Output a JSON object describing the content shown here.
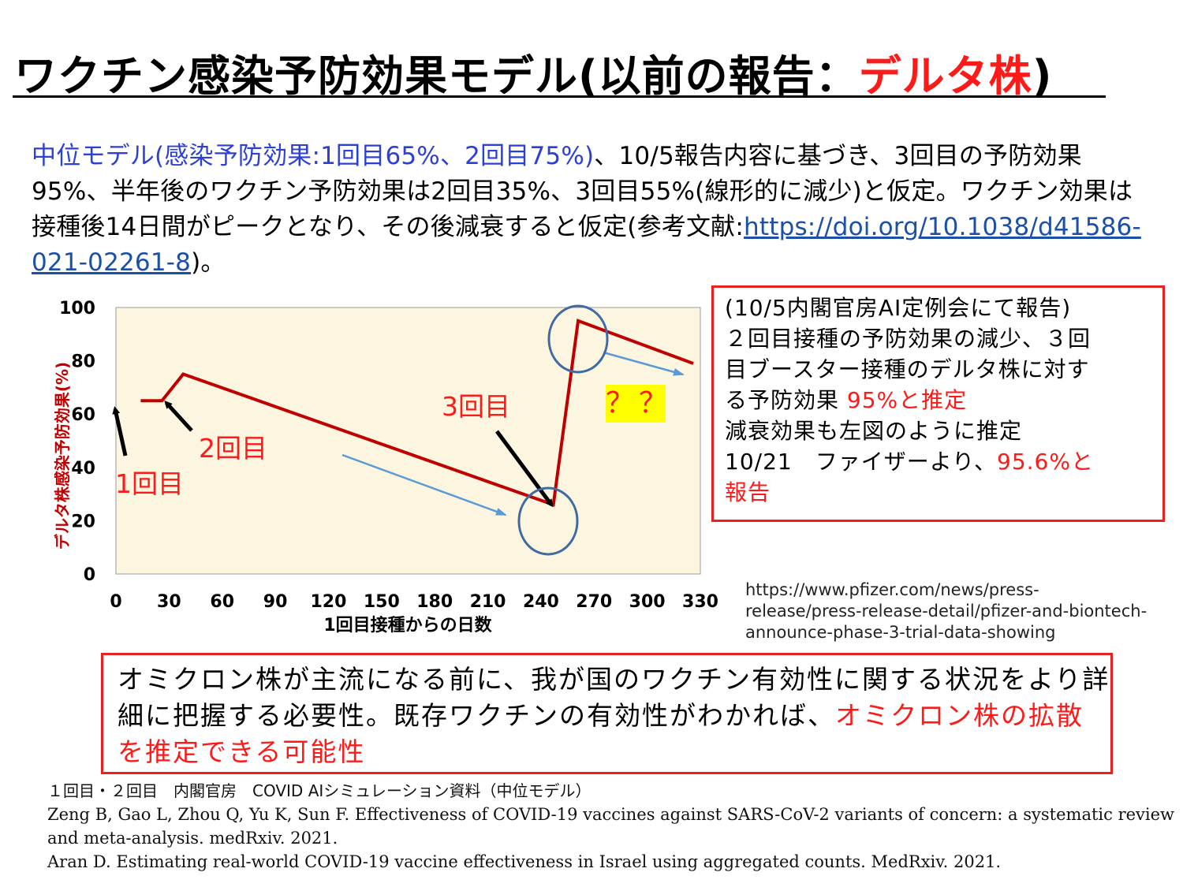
{
  "title": {
    "main": "ワクチン感染予防効果モデル(以前の報告：",
    "red": "デルタ株",
    "close": ")"
  },
  "intro": {
    "blue": "中位モデル(感染予防効果:1回目65%、2回目75%)",
    "text1": "、10/5報告内容に基づき、3回目の予防効果95%、半年後のワクチン予防効果は2回目35%、3回目55%(線形的に減少)と仮定。ワクチン効果は接種後14日間がピークとなり、その後減衰すると仮定(参考文献:",
    "link": "https://doi.org/10.1038/d41586-021-02261-8",
    "text2": ")。"
  },
  "chart_data": {
    "type": "line",
    "xlabel": "1回目接種からの日数",
    "ylabel": "デルタ株感染予防効果(%)",
    "xlim": [
      0,
      330
    ],
    "ylim": [
      0,
      100
    ],
    "xticks": [
      "0",
      "30",
      "60",
      "90",
      "120",
      "150",
      "180",
      "210",
      "240",
      "270",
      "300",
      "330"
    ],
    "yticks": [
      "0",
      "20",
      "40",
      "60",
      "80",
      "100"
    ],
    "grid": false,
    "background": "#fcf6e0",
    "series": [
      {
        "color": "#c00000",
        "points": [
          [
            14,
            65
          ],
          [
            26,
            65
          ],
          [
            38,
            75
          ],
          [
            247,
            26
          ],
          [
            261,
            95
          ],
          [
            326,
            79
          ]
        ]
      }
    ],
    "annotations": {
      "dose1": "1回目",
      "dose2": "2回目",
      "dose3": "3回目",
      "question": "？？"
    }
  },
  "note": {
    "lines_black": [
      "(10/5内閣官房AI定例会にて報告)",
      "２回目接種の予防効果の減少、３回",
      "目ブースター接種のデルタ株に対す"
    ],
    "line4_black": "る予防効果 ",
    "line4_red": "95%と推定",
    "line5": "減衰効果も左図のように推定",
    "line6_black": "10/21　ファイザーより、",
    "line6_red": "95.6%と",
    "line7_red": "報告"
  },
  "pfizer_url": "https://www.pfizer.com/news/press-release/press-release-detail/pfizer-and-biontech-announce-phase-3-trial-data-showing",
  "bottom": {
    "black": "オミクロン株が主流になる前に、我が国のワクチン有効性に関する状況をより詳細に把握する必要性。既存ワクチンの有効性がわかれば、",
    "red": "オミクロン株の拡散を推定できる可能性"
  },
  "references": [
    "１回目・２回目　内閣官房　COVID AIシミュレーション資料（中位モデル）",
    "Zeng B, Gao L, Zhou Q, Yu K, Sun F. Effectiveness of COVID-19 vaccines against SARS-CoV-2 variants of concern: a systematic review and meta-analysis. medRxiv. 2021.",
    "Aran D. Estimating real-world COVID-19 vaccine effectiveness in Israel using aggregated counts. MedRxiv. 2021."
  ]
}
